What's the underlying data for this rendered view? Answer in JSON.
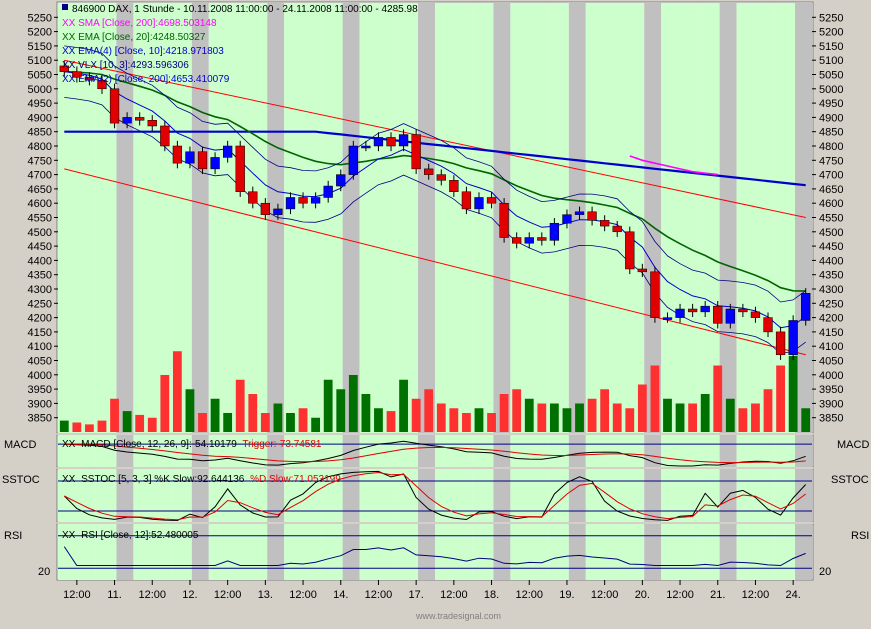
{
  "header": {
    "instrument": "846900  DAX, 1 Stunde - 10.11.2008 11:00:00 - 24.11.2008 11:00:00 - 4285.98",
    "lines": [
      {
        "text": "SMA [Close, 200]:4698.503148",
        "color": "#ff00ff"
      },
      {
        "text": "EMA [Close, 20]:4248.50327",
        "color": "#006400"
      },
      {
        "text": "EMA(4) [Close, 10]:4218.971803",
        "color": "#0000cd"
      },
      {
        "text": "VLX [10, 3]:4293.596306",
        "color": "#000080"
      },
      {
        "text": "EMA(2) [Close, 200]:4653.410079",
        "color": "#0000cd"
      }
    ],
    "prefix": "XX"
  },
  "panels": {
    "macd": {
      "name": "MACD",
      "legend_a": "MACD [Close, 12, 26, 9]:-54.10179",
      "legend_b": "Trigger:-73.74581"
    },
    "sstoc": {
      "name": "SSTOC",
      "legend_a": "SSTOC [5, 3, 3] %K Slow:92.644136",
      "legend_b": "%D Slow:71.053199"
    },
    "rsi": {
      "name": "RSI",
      "legend_a": "RSI [Close, 12]:52.480005",
      "level_label": "20"
    }
  },
  "xaxis_labels": [
    "12:00",
    "11.",
    "12:00",
    "12.",
    "12:00",
    "13.",
    "12:00",
    "14.",
    "12:00",
    "17.",
    "12:00",
    "18.",
    "12:00",
    "19.",
    "12:00",
    "20.",
    "12:00",
    "21.",
    "12:00",
    "24."
  ],
  "watermark": "www.tradesignal.com",
  "colors": {
    "bg_green": "#ccffcc",
    "bg_gray": "#c0c0c0",
    "up": "#0000ff",
    "down": "#e00000",
    "vol_up": "#007000",
    "vol_down": "#ff3030"
  },
  "chart_data": {
    "type": "candlestick",
    "title": "846900  DAX, 1 Stunde - 10.11.2008 11:00:00 - 24.11.2008 11:00:00 - 4285.98",
    "ylim": [
      3800,
      5300
    ],
    "yticks": [
      5250,
      5200,
      5150,
      5100,
      5050,
      5000,
      4950,
      4900,
      4850,
      4800,
      4750,
      4700,
      4650,
      4600,
      4550,
      4500,
      4450,
      4400,
      4350,
      4300,
      4250,
      4200,
      4150,
      4100,
      4050,
      4000,
      3950,
      3900,
      3850
    ],
    "close": [
      5060,
      5040,
      5030,
      5000,
      4880,
      4900,
      4890,
      4870,
      4800,
      4740,
      4780,
      4720,
      4760,
      4800,
      4640,
      4600,
      4560,
      4580,
      4620,
      4600,
      4620,
      4660,
      4700,
      4800,
      4800,
      4830,
      4800,
      4840,
      4720,
      4700,
      4680,
      4640,
      4580,
      4620,
      4600,
      4480,
      4460,
      4480,
      4470,
      4530,
      4560,
      4570,
      4540,
      4520,
      4500,
      4370,
      4360,
      4200,
      4200,
      4230,
      4220,
      4240,
      4180,
      4230,
      4220,
      4200,
      4150,
      4070,
      4190,
      4285
    ],
    "volume": [
      0.12,
      0.1,
      0.08,
      0.12,
      0.35,
      0.22,
      0.18,
      0.15,
      0.6,
      0.85,
      0.45,
      0.2,
      0.35,
      0.2,
      0.55,
      0.4,
      0.2,
      0.3,
      0.2,
      0.25,
      0.15,
      0.55,
      0.45,
      0.6,
      0.4,
      0.25,
      0.22,
      0.55,
      0.35,
      0.45,
      0.3,
      0.25,
      0.2,
      0.25,
      0.2,
      0.4,
      0.45,
      0.35,
      0.3,
      0.3,
      0.25,
      0.3,
      0.35,
      0.45,
      0.3,
      0.25,
      0.5,
      0.7,
      0.35,
      0.3,
      0.3,
      0.4,
      0.7,
      0.35,
      0.25,
      0.3,
      0.45,
      0.7,
      0.8,
      0.25
    ],
    "sma200": {
      "x_start": 45,
      "values": [
        4765,
        4750,
        4740,
        4730,
        4720,
        4710,
        4705,
        4700
      ]
    },
    "channel": {
      "upper": [
        [
          0,
          5100
        ],
        [
          59,
          4550
        ]
      ],
      "lower": [
        [
          0,
          4720
        ],
        [
          59,
          4070
        ]
      ]
    },
    "macd_range": [
      -160,
      60
    ],
    "stoch_range": [
      0,
      100
    ],
    "rsi_range": [
      0,
      100
    ]
  }
}
